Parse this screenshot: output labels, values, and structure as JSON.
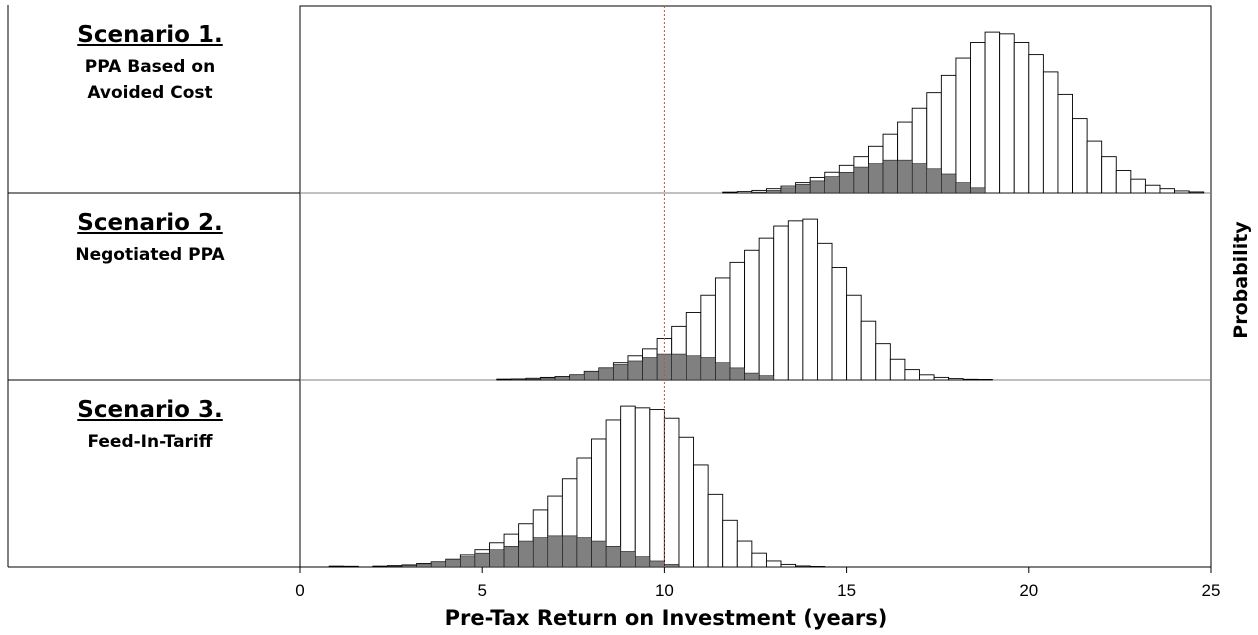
{
  "chart_data": {
    "type": "bar",
    "xlabel": "Pre-Tax Return on Investment (years)",
    "ylabel": "Probability",
    "xlim": [
      0,
      25
    ],
    "x_ticks": [
      "0",
      "5",
      "10",
      "15",
      "20",
      "25"
    ],
    "reference_line_x": 10,
    "bin_width": 0.4,
    "colors": {
      "outline_bar": "#ffffff",
      "shaded_bar": "#808080",
      "edge": "#000000",
      "reference_line": "#c0504d"
    },
    "panels": [
      {
        "title": "Scenario 1.",
        "subtitle": "PPA Based on\nAvoided Cost",
        "series": [
          {
            "values": [
              [
                11.8,
                0.005
              ],
              [
                12.2,
                0.008
              ],
              [
                12.6,
                0.015
              ],
              [
                13.0,
                0.025
              ],
              [
                13.4,
                0.04
              ],
              [
                13.8,
                0.06
              ],
              [
                14.2,
                0.09
              ],
              [
                14.6,
                0.12
              ],
              [
                15.0,
                0.16
              ],
              [
                15.4,
                0.21
              ],
              [
                15.8,
                0.27
              ],
              [
                16.2,
                0.34
              ],
              [
                16.6,
                0.41
              ],
              [
                17.0,
                0.49
              ],
              [
                17.4,
                0.58
              ],
              [
                17.8,
                0.68
              ],
              [
                18.2,
                0.78
              ],
              [
                18.6,
                0.87
              ],
              [
                19.0,
                0.93
              ],
              [
                19.4,
                0.92
              ],
              [
                19.8,
                0.87
              ],
              [
                20.2,
                0.8
              ],
              [
                20.6,
                0.7
              ],
              [
                21.0,
                0.57
              ],
              [
                21.4,
                0.43
              ],
              [
                21.8,
                0.3
              ],
              [
                22.2,
                0.21
              ],
              [
                22.6,
                0.13
              ],
              [
                23.0,
                0.08
              ],
              [
                23.4,
                0.045
              ],
              [
                23.8,
                0.025
              ],
              [
                24.2,
                0.012
              ],
              [
                24.6,
                0.006
              ]
            ]
          },
          {
            "values": [
              [
                12.6,
                0.005
              ],
              [
                13.0,
                0.015
              ],
              [
                13.4,
                0.03
              ],
              [
                13.8,
                0.05
              ],
              [
                14.2,
                0.07
              ],
              [
                14.6,
                0.095
              ],
              [
                15.0,
                0.12
              ],
              [
                15.4,
                0.15
              ],
              [
                15.8,
                0.17
              ],
              [
                16.2,
                0.19
              ],
              [
                16.6,
                0.19
              ],
              [
                17.0,
                0.17
              ],
              [
                17.4,
                0.14
              ],
              [
                17.8,
                0.11
              ],
              [
                18.2,
                0.06
              ],
              [
                18.6,
                0.03
              ]
            ]
          }
        ]
      },
      {
        "title": "Scenario 2.",
        "subtitle": "Negotiated PPA",
        "series": [
          {
            "values": [
              [
                5.6,
                0.005
              ],
              [
                6.0,
                0.006
              ],
              [
                6.4,
                0.01
              ],
              [
                6.8,
                0.015
              ],
              [
                7.2,
                0.02
              ],
              [
                7.6,
                0.03
              ],
              [
                8.0,
                0.05
              ],
              [
                8.4,
                0.07
              ],
              [
                8.8,
                0.1
              ],
              [
                9.2,
                0.14
              ],
              [
                9.6,
                0.18
              ],
              [
                10.0,
                0.24
              ],
              [
                10.4,
                0.31
              ],
              [
                10.8,
                0.39
              ],
              [
                11.2,
                0.49
              ],
              [
                11.6,
                0.59
              ],
              [
                12.0,
                0.68
              ],
              [
                12.4,
                0.75
              ],
              [
                12.8,
                0.82
              ],
              [
                13.2,
                0.89
              ],
              [
                13.6,
                0.92
              ],
              [
                14.0,
                0.93
              ],
              [
                14.4,
                0.79
              ],
              [
                14.8,
                0.65
              ],
              [
                15.2,
                0.49
              ],
              [
                15.6,
                0.34
              ],
              [
                16.0,
                0.21
              ],
              [
                16.4,
                0.12
              ],
              [
                16.8,
                0.06
              ],
              [
                17.2,
                0.03
              ],
              [
                17.6,
                0.015
              ],
              [
                18.0,
                0.008
              ],
              [
                18.4,
                0.004
              ],
              [
                18.8,
                0.003
              ]
            ]
          },
          {
            "values": [
              [
                6.4,
                0.005
              ],
              [
                6.8,
                0.012
              ],
              [
                7.2,
                0.02
              ],
              [
                7.6,
                0.03
              ],
              [
                8.0,
                0.05
              ],
              [
                8.4,
                0.07
              ],
              [
                8.8,
                0.09
              ],
              [
                9.2,
                0.11
              ],
              [
                9.6,
                0.13
              ],
              [
                10.0,
                0.15
              ],
              [
                10.4,
                0.15
              ],
              [
                10.8,
                0.14
              ],
              [
                11.2,
                0.13
              ],
              [
                11.6,
                0.1
              ],
              [
                12.0,
                0.07
              ],
              [
                12.4,
                0.04
              ],
              [
                12.8,
                0.025
              ]
            ]
          }
        ]
      },
      {
        "title": "Scenario 3.",
        "subtitle": "Feed-In-Tariff",
        "series": [
          {
            "values": [
              [
                1.0,
                0.005
              ],
              [
                1.4,
                0.004
              ],
              [
                2.2,
                0.005
              ],
              [
                2.6,
                0.008
              ],
              [
                3.0,
                0.012
              ],
              [
                3.4,
                0.02
              ],
              [
                3.8,
                0.03
              ],
              [
                4.2,
                0.045
              ],
              [
                4.6,
                0.07
              ],
              [
                5.0,
                0.1
              ],
              [
                5.4,
                0.14
              ],
              [
                5.8,
                0.19
              ],
              [
                6.2,
                0.25
              ],
              [
                6.6,
                0.33
              ],
              [
                7.0,
                0.41
              ],
              [
                7.4,
                0.51
              ],
              [
                7.8,
                0.63
              ],
              [
                8.2,
                0.74
              ],
              [
                8.6,
                0.85
              ],
              [
                9.0,
                0.93
              ],
              [
                9.4,
                0.92
              ],
              [
                9.8,
                0.91
              ],
              [
                10.2,
                0.86
              ],
              [
                10.6,
                0.75
              ],
              [
                11.0,
                0.59
              ],
              [
                11.4,
                0.42
              ],
              [
                11.8,
                0.27
              ],
              [
                12.2,
                0.15
              ],
              [
                12.6,
                0.08
              ],
              [
                13.0,
                0.035
              ],
              [
                13.4,
                0.015
              ],
              [
                13.8,
                0.006
              ],
              [
                14.2,
                0.003
              ]
            ]
          },
          {
            "values": [
              [
                2.6,
                0.004
              ],
              [
                3.0,
                0.01
              ],
              [
                3.4,
                0.018
              ],
              [
                3.8,
                0.03
              ],
              [
                4.2,
                0.045
              ],
              [
                4.6,
                0.06
              ],
              [
                5.0,
                0.08
              ],
              [
                5.4,
                0.1
              ],
              [
                5.8,
                0.12
              ],
              [
                6.2,
                0.15
              ],
              [
                6.6,
                0.17
              ],
              [
                7.0,
                0.18
              ],
              [
                7.4,
                0.18
              ],
              [
                7.8,
                0.17
              ],
              [
                8.2,
                0.15
              ],
              [
                8.6,
                0.12
              ],
              [
                9.0,
                0.09
              ],
              [
                9.4,
                0.06
              ],
              [
                9.8,
                0.035
              ],
              [
                10.2,
                0.015
              ]
            ]
          }
        ]
      }
    ]
  }
}
